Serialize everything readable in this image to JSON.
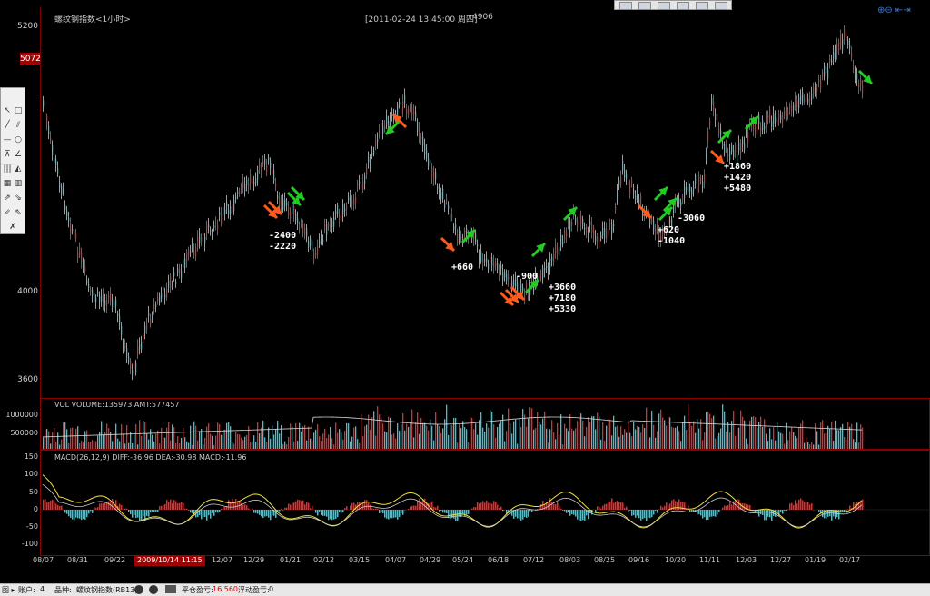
{
  "header": {
    "title": "螺纹钢指数<1小时>",
    "datetime": "[2011-02-24  13:45:00 周四]",
    "value": "4906"
  },
  "main_chart": {
    "y_labels": [
      "5200",
      "4000",
      "3600"
    ],
    "current_price": "5072",
    "annotations": {
      "a1": "-2400\n-2220",
      "a2": "+660",
      "a3": "-900",
      "a4": "+3660\n+7180\n+5330",
      "a5": "+620\n-1040",
      "a6": "-3060",
      "a7": "+1860\n+1420\n+5480"
    },
    "colors": {
      "up": "#ff2020",
      "down": "#20d0e0",
      "buy_arrow": "#ff5a1e",
      "sell_arrow": "#22cc22"
    }
  },
  "volume": {
    "label": "VOL  VOLUME:135973  AMT:577457",
    "y_labels": [
      "1000000",
      "500000"
    ]
  },
  "macd": {
    "label": "MACD(26,12,9)  DIFF:-36.96  DEA:-30.98  MACD:-11.96",
    "y_labels": [
      "150",
      "100",
      "50",
      "0",
      "-50",
      "-100"
    ]
  },
  "x_axis": {
    "dates": [
      "08/07",
      "08/31",
      "09/22",
      "12/07",
      "12/29",
      "01/21",
      "02/12",
      "03/15",
      "04/07",
      "04/29",
      "05/24",
      "06/18",
      "07/12",
      "08/03",
      "08/25",
      "09/16",
      "10/20",
      "11/11",
      "12/03",
      "12/27",
      "01/19",
      "02/17"
    ],
    "cursor_date": "2009/10/14 11:15"
  },
  "status_bar": {
    "left": "图 ▸",
    "account_label": "账户:",
    "account_value": "4",
    "product_label": "品种:",
    "product_value": "螺纹钢指数(RB13)",
    "close_pnl_label": "平仓盈亏:",
    "close_pnl_value": "16,560",
    "float_pnl_label": "浮动盈亏:",
    "float_pnl_value": "0"
  },
  "toolbox": {
    "tools": [
      "↖",
      "□",
      "╱",
      "⫽",
      "—",
      "○",
      "⊼",
      "∠",
      "|||",
      "◭",
      "▦",
      "▥",
      "⇗",
      "⇘",
      "⇙",
      "⇖",
      "✗"
    ]
  },
  "zoom_tools": "⊕⊖ ⇤⇥"
}
